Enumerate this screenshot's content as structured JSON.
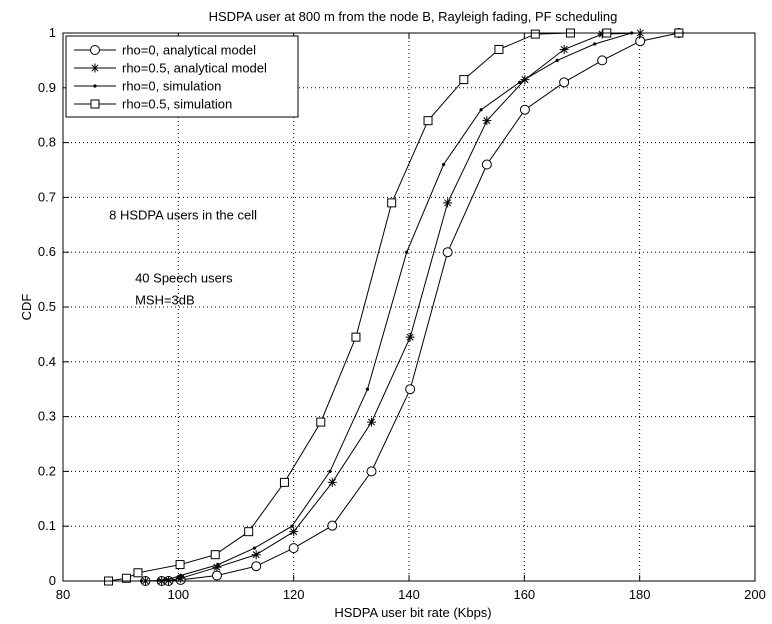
{
  "chart_data": {
    "type": "line",
    "title": "HSDPA user at 800 m from the node B, Rayleigh fading, PF scheduling",
    "xlabel": "HSDPA user bit rate (Kbps)",
    "ylabel": "CDF",
    "xlim": [
      80,
      200
    ],
    "ylim": [
      0,
      1
    ],
    "xticks": [
      80,
      100,
      120,
      140,
      160,
      180,
      200
    ],
    "yticks": [
      0,
      0.1,
      0.2,
      0.3,
      0.4,
      0.5,
      0.6,
      0.7,
      0.8,
      0.9,
      1
    ],
    "grid": true,
    "legend_position": "top-left",
    "annotations": [
      {
        "text": "8 HSDPA users in the cell",
        "x": 88,
        "y": 0.66
      },
      {
        "text": "40 Speech users",
        "x": 92.5,
        "y": 0.545
      },
      {
        "text": "MSH=3dB",
        "x": 92.5,
        "y": 0.505
      }
    ],
    "series": [
      {
        "name": "rho=0, analytical model",
        "marker": "circle",
        "x": [
          94.3,
          97.1,
          98.3,
          100.4,
          106.7,
          113.5,
          120.0,
          126.7,
          133.5,
          140.2,
          146.7,
          153.5,
          160.1,
          166.9,
          173.5,
          180.1,
          186.8
        ],
        "y": [
          0.0,
          0.0,
          0.0,
          0.002,
          0.01,
          0.027,
          0.06,
          0.101,
          0.2,
          0.35,
          0.6,
          0.76,
          0.86,
          0.91,
          0.95,
          0.985,
          1.0
        ]
      },
      {
        "name": "rho=0.5, analytical model",
        "marker": "star",
        "x": [
          94.3,
          97.1,
          98.3,
          100.4,
          106.7,
          113.5,
          120.0,
          126.7,
          133.5,
          140.2,
          146.7,
          153.5,
          160.1,
          166.9,
          173.5,
          180.1,
          186.8
        ],
        "y": [
          0.0,
          0.0,
          0.001,
          0.005,
          0.025,
          0.048,
          0.09,
          0.18,
          0.29,
          0.445,
          0.69,
          0.84,
          0.915,
          0.97,
          0.998,
          1.0,
          1.0
        ]
      },
      {
        "name": "rho=0, simulation",
        "marker": "dot",
        "x": [
          93.6,
          96.5,
          98.0,
          100.4,
          106.9,
          113.2,
          119.7,
          126.3,
          132.8,
          139.6,
          146.0,
          152.5,
          159.2,
          165.7,
          172.2,
          178.6,
          186.8
        ],
        "y": [
          0.0,
          0.001,
          0.002,
          0.01,
          0.03,
          0.06,
          0.1,
          0.2,
          0.35,
          0.6,
          0.76,
          0.86,
          0.91,
          0.95,
          0.98,
          1.0,
          1.0
        ]
      },
      {
        "name": "rho=0.5, simulation",
        "marker": "square",
        "x": [
          87.9,
          91.0,
          93.0,
          100.3,
          106.4,
          112.2,
          118.4,
          124.7,
          130.8,
          137.0,
          143.3,
          149.5,
          155.6,
          161.9,
          168.0,
          174.3,
          186.8
        ],
        "y": [
          0.0,
          0.005,
          0.015,
          0.03,
          0.048,
          0.09,
          0.18,
          0.29,
          0.445,
          0.69,
          0.84,
          0.915,
          0.97,
          0.998,
          1.0,
          1.0,
          1.0
        ]
      }
    ]
  }
}
